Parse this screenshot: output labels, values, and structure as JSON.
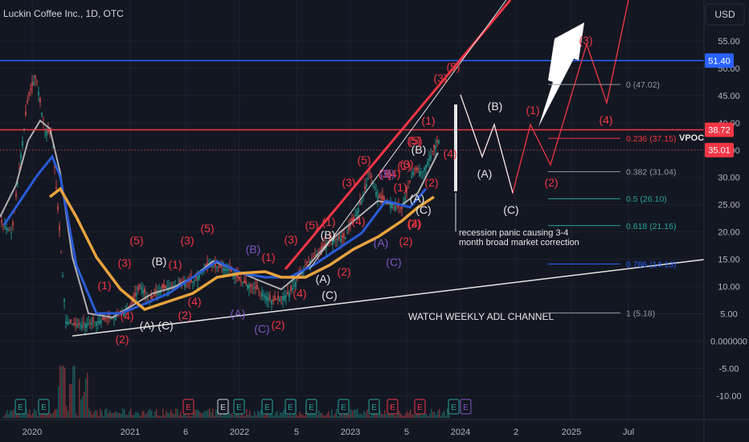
{
  "header": {
    "title": "Luckin Coffee Inc., 1D, OTC",
    "currency": "USD"
  },
  "colors": {
    "bg": "#131722",
    "grid": "#1e222d",
    "axis_text": "#b2b5be",
    "red": "#f23645",
    "white": "#e6e6e6",
    "purple": "#7e57c2",
    "blue": "#2962ff",
    "orange": "#e8a33d",
    "teal": "#26a69a",
    "tag_blue": "#2962ff",
    "tag_red": "#f23645",
    "candle_up": "#26a69a",
    "candle_down": "#ef5350",
    "ma_gray": "#b0b0b0",
    "ma_blue": "#2a5bd7"
  },
  "chart_data": {
    "type": "line",
    "title": "Luckin Coffee Inc., 1D, OTC",
    "xlabel": "",
    "ylabel": "USD",
    "ylim": [
      -12.9,
      66.7
    ],
    "grid": true,
    "x_ticks": [
      "2020",
      "2021",
      "6",
      "2022",
      "5",
      "2023",
      "5",
      "2024",
      "2",
      "2025",
      "Jul"
    ],
    "y_ticks": [
      "55.00",
      "50.00",
      "45.00",
      "40.00",
      "35.00",
      "30.00",
      "25.00",
      "20.00",
      "15.00",
      "10.00",
      "5.00",
      "0.000000",
      "-5.00",
      "-10.00"
    ],
    "price_tags": [
      {
        "value": 51.4,
        "label": "51.40",
        "color": "blue"
      },
      {
        "value": 38.72,
        "label": "38.72",
        "color": "red"
      },
      {
        "value": 35.01,
        "label": "35.01",
        "color": "red"
      }
    ],
    "horizontal_lines": [
      {
        "value": 51.4,
        "color": "blue"
      },
      {
        "value": 38.72,
        "color": "red"
      }
    ],
    "fib_levels": [
      {
        "label": "0 (47.02)",
        "value": 47.02,
        "color": "#9598a1"
      },
      {
        "label": "0.236 (37.15)",
        "value": 37.15,
        "color": "#f23645"
      },
      {
        "label": "0.382 (31.04)",
        "value": 31.04,
        "color": "#9598a1"
      },
      {
        "label": "0.5 (26.10)",
        "value": 26.1,
        "color": "#26a69a"
      },
      {
        "label": "0.618 (21.16)",
        "value": 21.16,
        "color": "#26a69a"
      },
      {
        "label": "0.786 (14.13)",
        "value": 14.13,
        "color": "#2962ff"
      },
      {
        "label": "1 (5.18)",
        "value": 5.18,
        "color": "#9598a1"
      }
    ],
    "annotations": {
      "vpoc": "VPOC",
      "recession_line1": "recession panic causing 3-4",
      "recession_line2": "month broad market correction",
      "adl": "WATCH WEEKLY ADL CHANNEL"
    },
    "earnings_markers": [
      "E",
      "E",
      "E",
      "E",
      "E",
      "E",
      "E",
      "E",
      "E",
      "E",
      "E",
      "E",
      "E",
      "E",
      "E"
    ],
    "wave_labels": [
      {
        "t": "(5)",
        "c": "red"
      },
      {
        "t": "(3)",
        "c": "red"
      },
      {
        "t": "(1)",
        "c": "red"
      },
      {
        "t": "(4)",
        "c": "red"
      },
      {
        "t": "(2)",
        "c": "red"
      },
      {
        "t": "(B)",
        "c": "white"
      },
      {
        "t": "(A)",
        "c": "white"
      },
      {
        "t": "(C)",
        "c": "white"
      },
      {
        "t": "(1)",
        "c": "red"
      },
      {
        "t": "(3)",
        "c": "red"
      },
      {
        "t": "(5)",
        "c": "red"
      },
      {
        "t": "(4)",
        "c": "red"
      },
      {
        "t": "(2)",
        "c": "red"
      },
      {
        "t": "(B)",
        "c": "purple"
      },
      {
        "t": "(A)",
        "c": "purple"
      },
      {
        "t": "(C)",
        "c": "purple"
      },
      {
        "t": "(1)",
        "c": "red"
      },
      {
        "t": "(2)",
        "c": "red"
      },
      {
        "t": "(3)",
        "c": "red"
      },
      {
        "t": "(4)",
        "c": "red"
      },
      {
        "t": "(5)",
        "c": "red"
      },
      {
        "t": "(B)",
        "c": "white"
      },
      {
        "t": "(A)",
        "c": "white"
      },
      {
        "t": "(C)",
        "c": "white"
      },
      {
        "t": "(1)",
        "c": "red"
      },
      {
        "t": "(2)",
        "c": "red"
      },
      {
        "t": "(3)",
        "c": "red"
      },
      {
        "t": "(4)",
        "c": "red"
      },
      {
        "t": "(5)",
        "c": "red"
      },
      {
        "t": "(3)",
        "c": "red"
      },
      {
        "t": "(1)",
        "c": "red"
      },
      {
        "t": "(4)",
        "c": "red"
      },
      {
        "t": "(2)",
        "c": "red"
      },
      {
        "t": "(B)",
        "c": "purple"
      },
      {
        "t": "(A)",
        "c": "purple"
      },
      {
        "t": "(C)",
        "c": "purple"
      },
      {
        "t": "(1)",
        "c": "red"
      },
      {
        "t": "(2)",
        "c": "red"
      },
      {
        "t": "(3)",
        "c": "red"
      },
      {
        "t": "(4)",
        "c": "red"
      },
      {
        "t": "(5)",
        "c": "red"
      },
      {
        "t": "(B)",
        "c": "white"
      },
      {
        "t": "(A)",
        "c": "white"
      },
      {
        "t": "(C)",
        "c": "white"
      },
      {
        "t": "(1)",
        "c": "red"
      },
      {
        "t": "(2)",
        "c": "red"
      },
      {
        "t": "(3)",
        "c": "red"
      },
      {
        "t": "(4)",
        "c": "red"
      },
      {
        "t": "(5)",
        "c": "red"
      },
      {
        "t": "(5)",
        "c": "red"
      },
      {
        "t": "(B)",
        "c": "white"
      },
      {
        "t": "(A)",
        "c": "white"
      },
      {
        "t": "(C)",
        "c": "white"
      },
      {
        "t": "(1)",
        "c": "red"
      },
      {
        "t": "(2)",
        "c": "red"
      },
      {
        "t": "(3)",
        "c": "red"
      },
      {
        "t": "(4)",
        "c": "red"
      }
    ]
  }
}
